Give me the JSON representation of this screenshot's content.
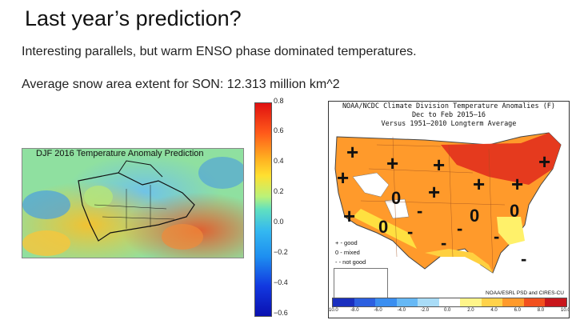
{
  "slide": {
    "title": "Last year’s prediction?",
    "line1": "Interesting parallels, but warm ENSO phase dominated temperatures.",
    "line2": "Average snow area extent for SON: 12.313 million km^2"
  },
  "prediction_figure": {
    "title": "DJF 2016 Temperature Anomaly Prediction",
    "colorbar_ticks": [
      "0.8",
      "0.6",
      "0.4",
      "0.2",
      "0.0",
      "−0.2",
      "−0.4",
      "−0.6"
    ]
  },
  "observed_figure": {
    "title_lines": [
      "NOAA/NCDC Climate Division Temperature Anomalies (F)",
      "Dec to Feb 2015–16",
      "Versus 1951–2010 Longterm Average"
    ],
    "legend": [
      "+ - good",
      "0 - mixed",
      "- - not good"
    ],
    "credit": "NOAA/ESRL PSD and CIRES-CU",
    "scale_labels": [
      "-10.0",
      "-8.0",
      "-6.0",
      "-4.0",
      "-2.0",
      "0.0",
      "2.0",
      "4.0",
      "6.0",
      "8.0",
      "10.0"
    ],
    "scale_colors": [
      "#1a2fbf",
      "#2c5fe0",
      "#3a8ef0",
      "#66b8f5",
      "#a9dcf7",
      "#ffffff",
      "#fff58a",
      "#ffd24a",
      "#ff9a2b",
      "#f2501e",
      "#c8161c"
    ]
  }
}
